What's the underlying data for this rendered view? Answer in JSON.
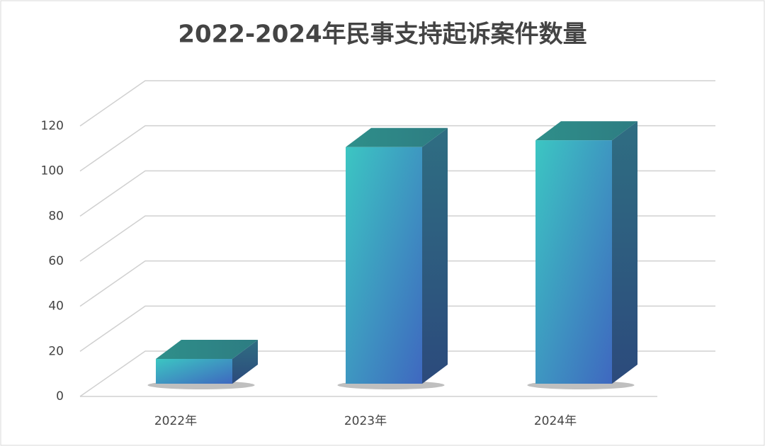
{
  "chart_data": {
    "type": "bar3d",
    "title": "2022-2024年民事支持起诉案件数量",
    "categories": [
      "2022年",
      "2023年",
      "2024年"
    ],
    "values": [
      11,
      105,
      108
    ],
    "ylim": [
      0,
      120
    ],
    "yticks": [
      0,
      20,
      40,
      60,
      80,
      100,
      120
    ],
    "grid": true
  }
}
